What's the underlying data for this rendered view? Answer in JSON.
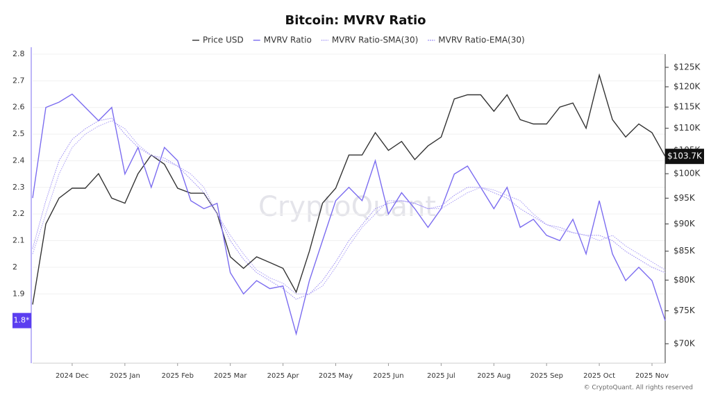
{
  "chart_data": {
    "type": "line",
    "title": "Bitcoin: MVRV Ratio",
    "categories": [
      null,
      null,
      null,
      "2024 Dec",
      null,
      null,
      null,
      "2025 Jan",
      null,
      null,
      null,
      "2025 Feb",
      null,
      null,
      null,
      "2025 Mar",
      null,
      null,
      null,
      "2025 Apr",
      null,
      null,
      null,
      "2025 May",
      null,
      null,
      null,
      "2025 Jun",
      null,
      null,
      null,
      "2025 Jul",
      null,
      null,
      null,
      "2025 Aug",
      null,
      null,
      null,
      "2025 Sep",
      null,
      null,
      null,
      "2025 Oct",
      null,
      null,
      null,
      "2025 Nov",
      null
    ],
    "series": [
      {
        "name": "Price USD",
        "color": "#333333",
        "axis": "y2",
        "style": "solid",
        "values": [
          76000,
          90000,
          95000,
          97000,
          97000,
          100000,
          95000,
          94000,
          100000,
          104000,
          102000,
          97000,
          96000,
          96000,
          92000,
          84000,
          82000,
          84000,
          83000,
          82000,
          78000,
          85000,
          94000,
          97000,
          104000,
          104000,
          109000,
          105000,
          107000,
          103000,
          106000,
          108000,
          117000,
          118000,
          118000,
          114000,
          118000,
          112000,
          111000,
          111000,
          115000,
          116000,
          110000,
          123000,
          112000,
          108000,
          111000,
          109000,
          103700
        ]
      },
      {
        "name": "MVRV Ratio",
        "color": "#7b6cf0",
        "style": "solid",
        "values": [
          2.26,
          2.6,
          2.62,
          2.65,
          2.6,
          2.55,
          2.6,
          2.35,
          2.45,
          2.3,
          2.45,
          2.4,
          2.25,
          2.22,
          2.24,
          1.98,
          1.9,
          1.95,
          1.92,
          1.93,
          1.75,
          1.95,
          2.1,
          2.25,
          2.3,
          2.25,
          2.4,
          2.2,
          2.28,
          2.22,
          2.15,
          2.22,
          2.35,
          2.38,
          2.3,
          2.22,
          2.3,
          2.15,
          2.18,
          2.12,
          2.1,
          2.18,
          2.05,
          2.25,
          2.05,
          1.95,
          2.0,
          1.95,
          1.8
        ]
      },
      {
        "name": "MVRV Ratio-SMA(30)",
        "color": "#a99cf5",
        "style": "dotted",
        "values": [
          2.05,
          2.2,
          2.35,
          2.45,
          2.5,
          2.53,
          2.55,
          2.52,
          2.46,
          2.42,
          2.4,
          2.38,
          2.35,
          2.3,
          2.2,
          2.12,
          2.05,
          1.99,
          1.96,
          1.94,
          1.9,
          1.9,
          1.93,
          2.0,
          2.08,
          2.15,
          2.2,
          2.25,
          2.25,
          2.24,
          2.22,
          2.22,
          2.25,
          2.28,
          2.3,
          2.29,
          2.27,
          2.25,
          2.2,
          2.16,
          2.14,
          2.13,
          2.12,
          2.1,
          2.12,
          2.08,
          2.05,
          2.02,
          1.99
        ]
      },
      {
        "name": "MVRV Ratio-EMA(30)",
        "color": "#9485f2",
        "style": "dotted",
        "values": [
          2.07,
          2.25,
          2.4,
          2.48,
          2.52,
          2.55,
          2.56,
          2.5,
          2.45,
          2.42,
          2.41,
          2.38,
          2.33,
          2.28,
          2.2,
          2.1,
          2.03,
          1.98,
          1.95,
          1.92,
          1.88,
          1.9,
          1.95,
          2.02,
          2.1,
          2.16,
          2.22,
          2.24,
          2.25,
          2.24,
          2.22,
          2.23,
          2.27,
          2.3,
          2.3,
          2.28,
          2.26,
          2.22,
          2.19,
          2.16,
          2.15,
          2.13,
          2.12,
          2.12,
          2.1,
          2.06,
          2.03,
          2.0,
          1.98
        ]
      }
    ],
    "ylim": [
      1.64,
      2.8
    ],
    "yticks": [
      1.9,
      2,
      2.1,
      2.2,
      2.3,
      2.4,
      2.5,
      2.6,
      2.7,
      2.8
    ],
    "y2lim": [
      67200,
      128500
    ],
    "y2log": true,
    "y2ticks": [
      {
        "value": 70000,
        "label": "$70K"
      },
      {
        "value": 75000,
        "label": "$75K"
      },
      {
        "value": 80000,
        "label": "$80K"
      },
      {
        "value": 85000,
        "label": "$85K"
      },
      {
        "value": 90000,
        "label": "$90K"
      },
      {
        "value": 95000,
        "label": "$95K"
      },
      {
        "value": 100000,
        "label": "$100K"
      },
      {
        "value": 105000,
        "label": "$105K"
      },
      {
        "value": 110000,
        "label": "$110K"
      },
      {
        "value": 115000,
        "label": "$115K"
      },
      {
        "value": 120000,
        "label": "$120K"
      },
      {
        "value": 125000,
        "label": "$125K"
      }
    ],
    "y_marker": {
      "value": 1.8,
      "label": "1.8*"
    },
    "y2_marker": {
      "value": 103700,
      "label": "$103.7K"
    },
    "grid": true,
    "watermark": "CryptoQuant",
    "footer": "© CryptoQuant. All rights reserved"
  }
}
